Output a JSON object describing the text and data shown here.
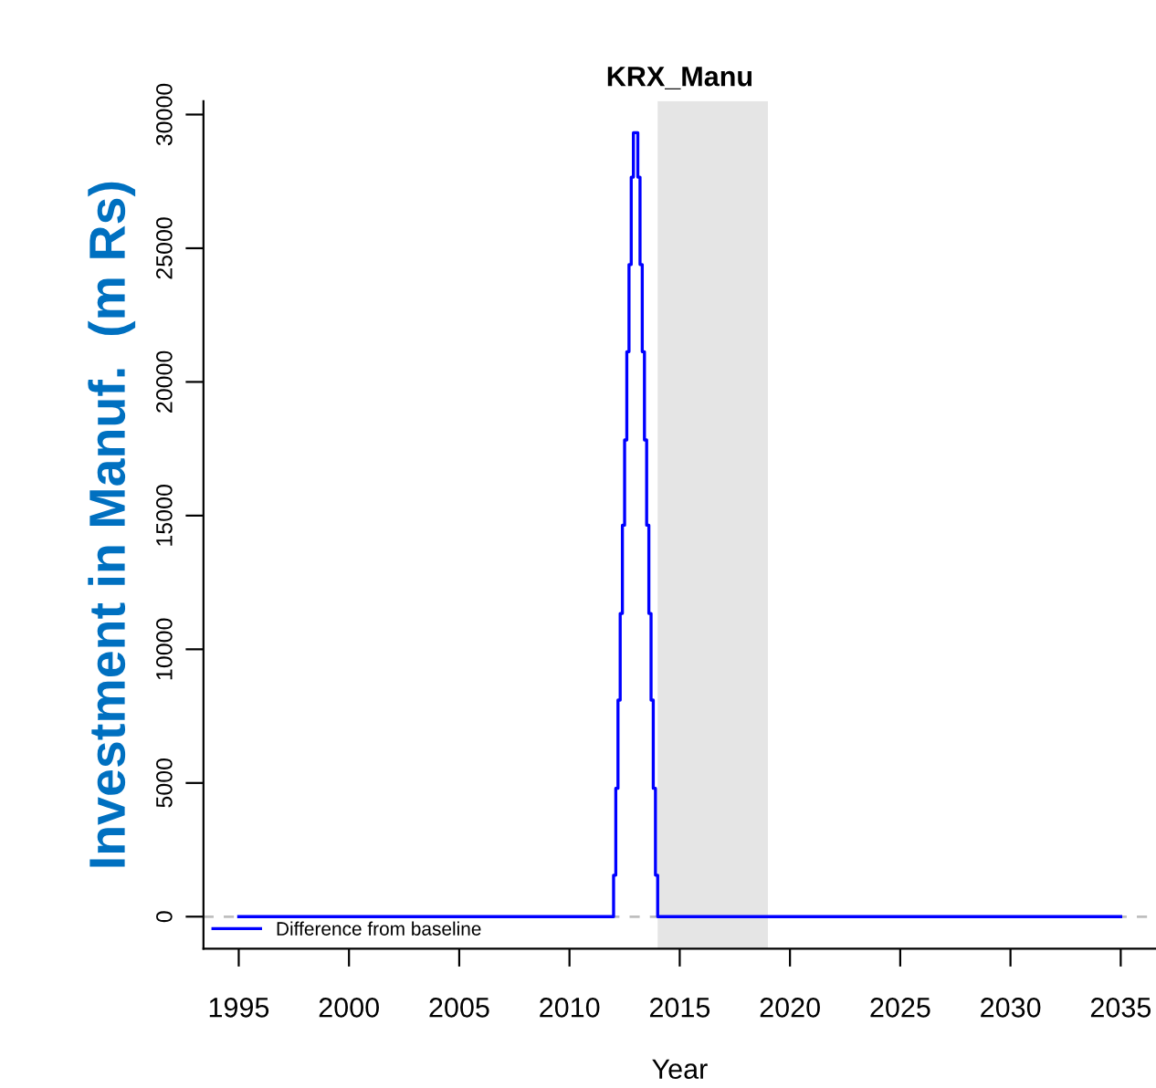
{
  "chart_data": {
    "type": "step",
    "title": "KRX_Manu",
    "xlabel": "Year",
    "ylabel": "Investment in Manuf.  (m Rs)",
    "series": [
      {
        "name": "Difference from baseline",
        "color": "#0000ff",
        "x": [
          1995,
          2012.0,
          2012.1,
          2012.2,
          2012.3,
          2012.4,
          2012.5,
          2012.6,
          2012.7,
          2012.8,
          2012.9,
          2013.0,
          2013.1,
          2013.2,
          2013.3,
          2013.4,
          2013.5,
          2013.6,
          2013.7,
          2013.8,
          2013.9,
          2014.0,
          2035
        ],
        "values": [
          0,
          1550,
          4800,
          8100,
          11340,
          14640,
          17830,
          21130,
          24390,
          27660,
          29320,
          29320,
          27660,
          24390,
          21130,
          17830,
          14640,
          11340,
          8100,
          4800,
          1550,
          0,
          0
        ]
      }
    ],
    "xlim": [
      1993.4,
      2036.6
    ],
    "ylim": [
      -1200,
      30500
    ],
    "xticks": [
      1995,
      2000,
      2005,
      2010,
      2015,
      2020,
      2025,
      2030,
      2035
    ],
    "yticks": [
      0,
      5000,
      10000,
      15000,
      20000,
      25000,
      30000
    ],
    "ref_lines": [
      {
        "axis": "y",
        "value": 0,
        "color": "#bebebe",
        "line_style": "dashed"
      }
    ],
    "bands": [
      {
        "axis": "x",
        "from": 2014,
        "to": 2019,
        "color": "#e5e5e5"
      }
    ],
    "legend": "bottom left",
    "grid": false
  }
}
